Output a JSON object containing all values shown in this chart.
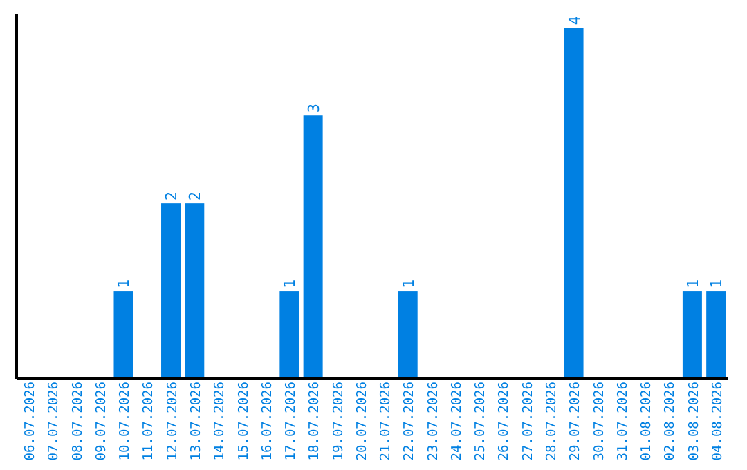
{
  "chart_data": {
    "type": "bar",
    "categories": [
      "06.07.2026",
      "07.07.2026",
      "08.07.2026",
      "09.07.2026",
      "10.07.2026",
      "11.07.2026",
      "12.07.2026",
      "13.07.2026",
      "14.07.2026",
      "15.07.2026",
      "16.07.2026",
      "17.07.2026",
      "18.07.2026",
      "19.07.2026",
      "20.07.2026",
      "21.07.2026",
      "22.07.2026",
      "23.07.2026",
      "24.07.2026",
      "25.07.2026",
      "26.07.2026",
      "27.07.2026",
      "28.07.2026",
      "29.07.2026",
      "30.07.2026",
      "31.07.2026",
      "01.08.2026",
      "02.08.2026",
      "03.08.2026",
      "04.08.2026"
    ],
    "values": [
      0,
      0,
      0,
      0,
      1,
      0,
      2,
      2,
      0,
      0,
      0,
      1,
      3,
      0,
      0,
      0,
      1,
      0,
      0,
      0,
      0,
      0,
      0,
      4,
      0,
      0,
      0,
      0,
      1,
      1
    ],
    "value_labels": [
      null,
      null,
      null,
      null,
      "1",
      null,
      "2",
      "2",
      null,
      null,
      null,
      "1",
      "3",
      null,
      null,
      null,
      "1",
      null,
      null,
      null,
      null,
      null,
      null,
      "4",
      null,
      null,
      null,
      null,
      "1",
      "1"
    ],
    "color": "#0080e2",
    "tick_labels": "x"
  }
}
